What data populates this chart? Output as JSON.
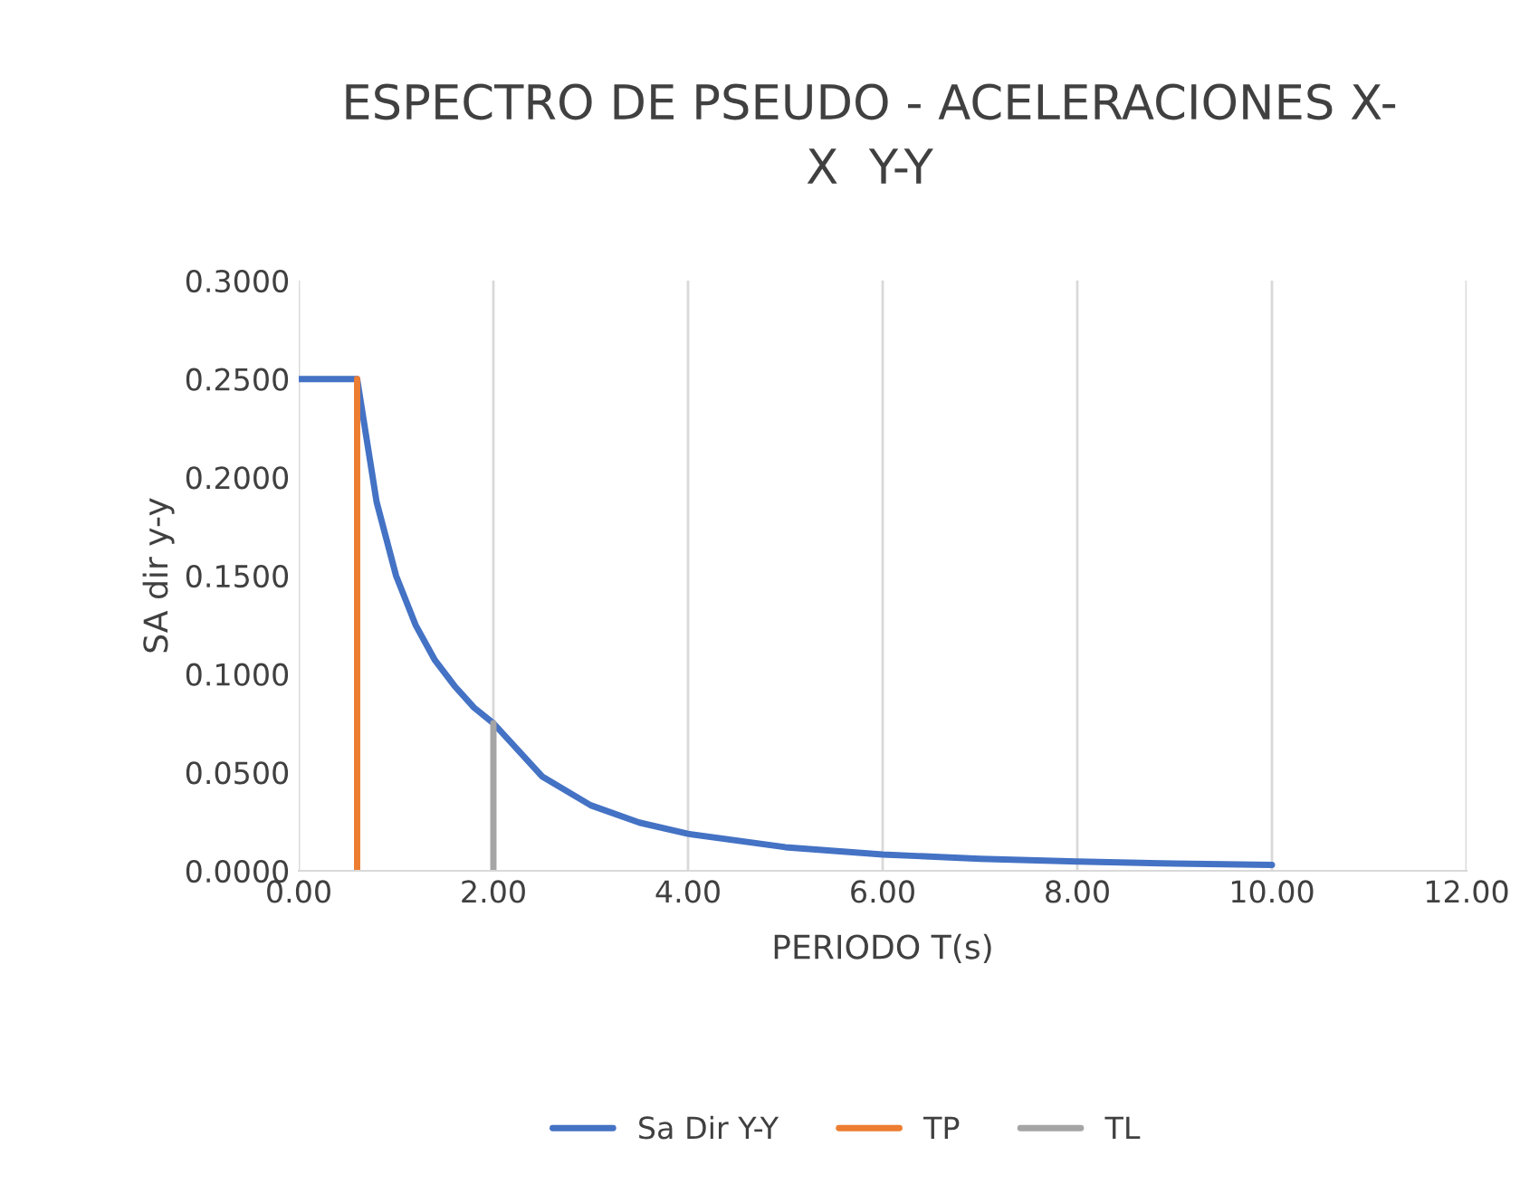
{
  "chart_data": {
    "type": "line",
    "title": "ESPECTRO DE PSEUDO - ACELERACIONES X-\nX  Y-Y",
    "xlabel": "PERIODO T(s)",
    "ylabel": "SA dir y-y",
    "series": [
      {
        "name": "Sa Dir Y-Y",
        "color": "#4472c4",
        "x": [
          0,
          0.2,
          0.4,
          0.6,
          0.8,
          1.0,
          1.2,
          1.4,
          1.6,
          1.8,
          2.0,
          2.5,
          3.0,
          3.5,
          4.0,
          5.0,
          6.0,
          7.0,
          8.0,
          9.0,
          10.0
        ],
        "values": [
          0.25,
          0.25,
          0.25,
          0.25,
          0.1875,
          0.15,
          0.125,
          0.107,
          0.094,
          0.083,
          0.075,
          0.048,
          0.0333,
          0.0245,
          0.0188,
          0.012,
          0.0083,
          0.0061,
          0.0047,
          0.0037,
          0.003
        ]
      },
      {
        "name": "TP",
        "color": "#ed7d31",
        "x": [
          0.6,
          0.6
        ],
        "values": [
          0,
          0.25
        ]
      },
      {
        "name": "TL",
        "color": "#a5a5a5",
        "x": [
          2.0,
          2.0
        ],
        "values": [
          0,
          0.075
        ]
      }
    ],
    "xlim": [
      0,
      12
    ],
    "xticks": [
      {
        "value": 0,
        "label": "0.00"
      },
      {
        "value": 2,
        "label": "2.00"
      },
      {
        "value": 4,
        "label": "4.00"
      },
      {
        "value": 6,
        "label": "6.00"
      },
      {
        "value": 8,
        "label": "8.00"
      },
      {
        "value": 10,
        "label": "10.00"
      },
      {
        "value": 12,
        "label": "12.00"
      }
    ],
    "ylim": [
      0,
      0.3
    ],
    "yticks": [
      {
        "value": 0,
        "label": "0.0000"
      },
      {
        "value": 0.05,
        "label": "0.0500"
      },
      {
        "value": 0.1,
        "label": "0.1000"
      },
      {
        "value": 0.15,
        "label": "0.1500"
      },
      {
        "value": 0.2,
        "label": "0.2000"
      },
      {
        "value": 0.25,
        "label": "0.2500"
      },
      {
        "value": 0.3,
        "label": "0.3000"
      }
    ],
    "grid": "x",
    "legend": "bottom",
    "marker": "none",
    "line_style": "solid"
  }
}
